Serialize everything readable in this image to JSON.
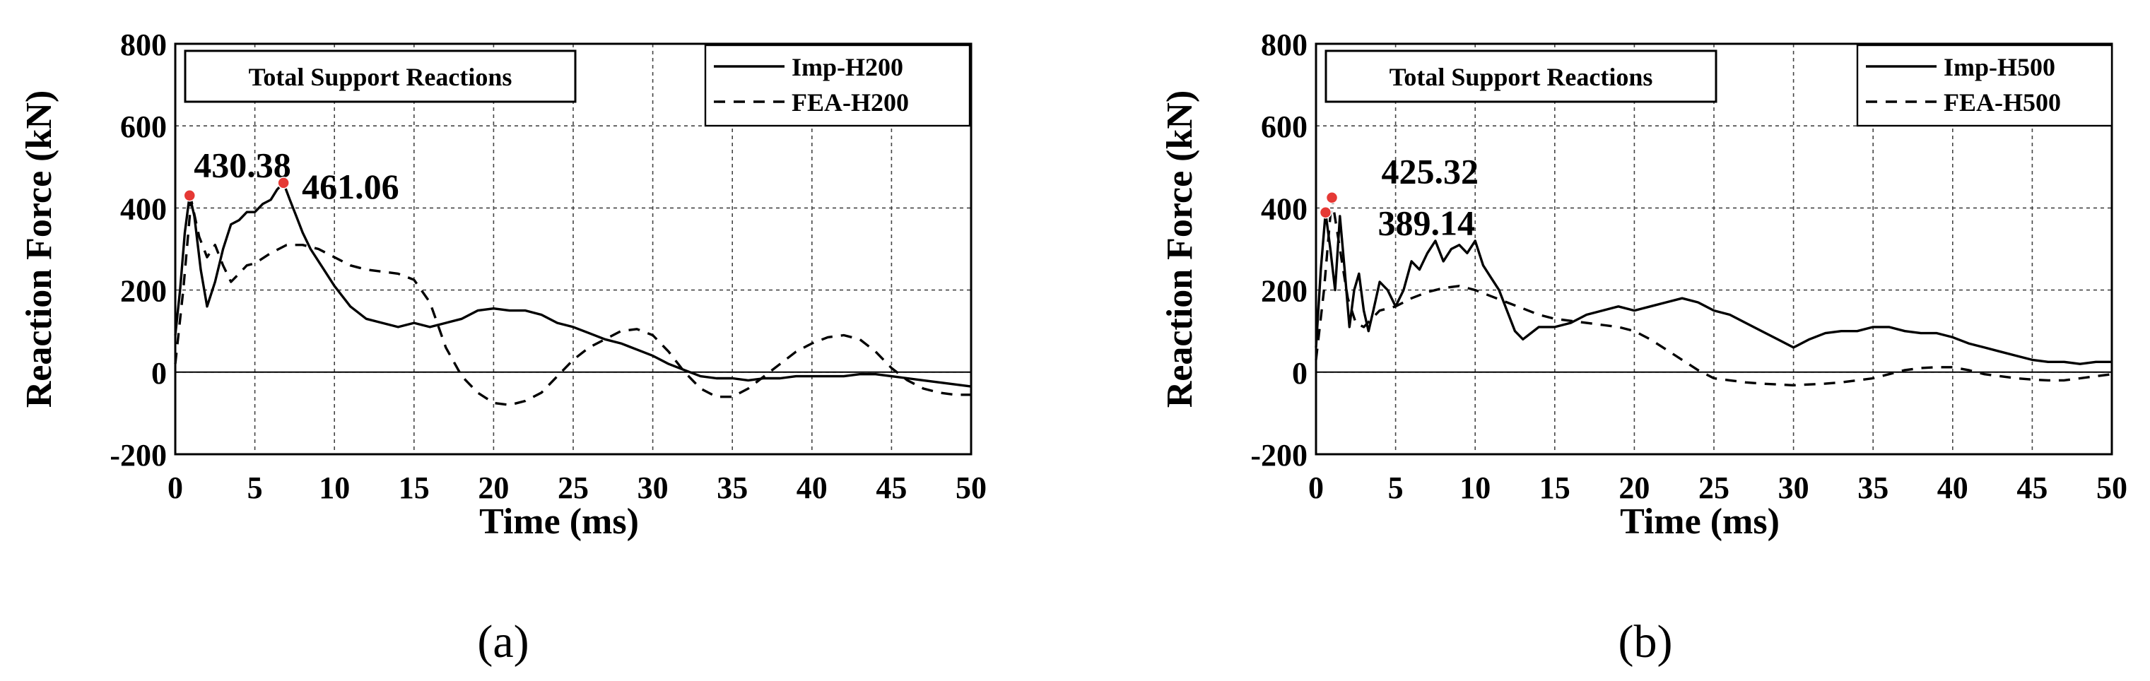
{
  "chart_data": [
    {
      "type": "line",
      "panel_label": "(a)",
      "title": "Total Support Reactions",
      "xlabel": "Time (ms)",
      "ylabel": "Reaction Force (kN)",
      "xlim": [
        0,
        50
      ],
      "ylim": [
        -200,
        800
      ],
      "xticks": [
        0,
        5,
        10,
        15,
        20,
        25,
        30,
        35,
        40,
        45,
        50
      ],
      "yticks": [
        -200,
        0,
        200,
        400,
        600,
        800
      ],
      "grid": true,
      "legend_position": "top-right",
      "series": [
        {
          "name": "Imp-H200",
          "style": "solid",
          "x": [
            0,
            0.3,
            0.6,
            0.9,
            1.2,
            1.6,
            2.0,
            2.5,
            3.0,
            3.5,
            4.0,
            4.5,
            5.0,
            5.5,
            6.0,
            6.4,
            6.8,
            7.2,
            7.6,
            8.0,
            8.5,
            9.0,
            10.0,
            11.0,
            12.0,
            13.0,
            14.0,
            15.0,
            16.0,
            17.0,
            18.0,
            19.0,
            20.0,
            21.0,
            22.0,
            23.0,
            24.0,
            25.0,
            26.0,
            27.0,
            28.0,
            29.0,
            30.0,
            31.0,
            32.0,
            33.0,
            34.0,
            35.0,
            36.0,
            37.0,
            38.0,
            39.0,
            40.0,
            41.0,
            42.0,
            43.0,
            44.0,
            45.0,
            46.0,
            47.0,
            48.0,
            49.0,
            50.0
          ],
          "values": [
            90,
            200,
            340,
            430.38,
            380,
            250,
            160,
            220,
            300,
            360,
            370,
            390,
            390,
            410,
            420,
            445,
            461.06,
            420,
            380,
            340,
            300,
            270,
            210,
            160,
            130,
            120,
            110,
            120,
            110,
            120,
            130,
            150,
            155,
            150,
            150,
            140,
            120,
            110,
            95,
            80,
            70,
            55,
            40,
            20,
            5,
            -10,
            -15,
            -15,
            -20,
            -15,
            -15,
            -10,
            -10,
            -10,
            -10,
            -5,
            -5,
            -10,
            -15,
            -20,
            -25,
            -30,
            -35
          ]
        },
        {
          "name": "FEA-H200",
          "style": "dashed",
          "x": [
            0,
            0.5,
            1.0,
            1.5,
            2.0,
            2.5,
            3.0,
            3.5,
            4.0,
            4.5,
            5.0,
            6.0,
            7.0,
            8.0,
            9.0,
            10.0,
            11.0,
            12.0,
            13.0,
            14.0,
            15.0,
            16.0,
            17.0,
            18.0,
            19.0,
            20.0,
            21.0,
            22.0,
            23.0,
            24.0,
            25.0,
            26.0,
            27.0,
            28.0,
            29.0,
            30.0,
            31.0,
            32.0,
            33.0,
            34.0,
            35.0,
            36.0,
            37.0,
            38.0,
            39.0,
            40.0,
            41.0,
            42.0,
            43.0,
            44.0,
            45.0,
            46.0,
            47.0,
            48.0,
            49.0,
            50.0
          ],
          "values": [
            20,
            200,
            420,
            330,
            280,
            310,
            260,
            220,
            240,
            260,
            265,
            290,
            310,
            310,
            300,
            280,
            260,
            250,
            245,
            240,
            225,
            170,
            60,
            -10,
            -50,
            -75,
            -80,
            -70,
            -50,
            -10,
            30,
            60,
            80,
            100,
            105,
            90,
            50,
            0,
            -40,
            -60,
            -60,
            -40,
            -10,
            20,
            50,
            70,
            85,
            90,
            80,
            50,
            10,
            -20,
            -40,
            -50,
            -55,
            -55
          ]
        }
      ],
      "annotations": [
        {
          "text": "430.38",
          "x": 0.9,
          "y": 430.38,
          "marker_color": "#e53935"
        },
        {
          "text": "461.06",
          "x": 6.8,
          "y": 461.06,
          "marker_color": "#e53935"
        }
      ]
    },
    {
      "type": "line",
      "panel_label": "(b)",
      "title": "Total Support Reactions",
      "xlabel": "Time (ms)",
      "ylabel": "Reaction Force (kN)",
      "xlim": [
        0,
        50
      ],
      "ylim": [
        -200,
        800
      ],
      "xticks": [
        0,
        5,
        10,
        15,
        20,
        25,
        30,
        35,
        40,
        45,
        50
      ],
      "yticks": [
        -200,
        0,
        200,
        400,
        600,
        800
      ],
      "grid": true,
      "legend_position": "top-right",
      "series": [
        {
          "name": "Imp-H500",
          "style": "solid",
          "x": [
            0,
            0.3,
            0.6,
            0.9,
            1.2,
            1.5,
            1.8,
            2.1,
            2.4,
            2.7,
            3.0,
            3.3,
            3.6,
            4.0,
            4.5,
            5.0,
            5.5,
            6.0,
            6.5,
            7.0,
            7.5,
            8.0,
            8.5,
            9.0,
            9.5,
            10.0,
            10.5,
            11.0,
            11.5,
            12.0,
            12.5,
            13.0,
            14.0,
            15.0,
            16.0,
            17.0,
            18.0,
            19.0,
            20.0,
            21.0,
            22.0,
            23.0,
            24.0,
            25.0,
            26.0,
            27.0,
            28.0,
            29.0,
            30.0,
            31.0,
            32.0,
            33.0,
            34.0,
            35.0,
            36.0,
            37.0,
            38.0,
            39.0,
            40.0,
            41.0,
            42.0,
            43.0,
            44.0,
            45.0,
            46.0,
            47.0,
            48.0,
            49.0,
            50.0
          ],
          "values": [
            60,
            250,
            389.14,
            300,
            200,
            380,
            250,
            110,
            200,
            240,
            150,
            100,
            150,
            220,
            200,
            160,
            200,
            270,
            250,
            290,
            320,
            270,
            300,
            310,
            290,
            320,
            260,
            230,
            200,
            150,
            100,
            80,
            110,
            110,
            120,
            140,
            150,
            160,
            150,
            160,
            170,
            180,
            170,
            150,
            140,
            120,
            100,
            80,
            60,
            80,
            95,
            100,
            100,
            110,
            110,
            100,
            95,
            95,
            85,
            70,
            60,
            50,
            40,
            30,
            25,
            25,
            20,
            25,
            25
          ]
        },
        {
          "name": "FEA-H500",
          "style": "dashed",
          "x": [
            0,
            0.5,
            1.0,
            1.5,
            2.0,
            2.5,
            3.0,
            3.5,
            4.0,
            5.0,
            6.0,
            7.0,
            8.0,
            9.0,
            10.0,
            11.0,
            12.0,
            13.0,
            14.0,
            15.0,
            16.0,
            17.0,
            18.0,
            19.0,
            20.0,
            21.0,
            22.0,
            23.0,
            24.0,
            25.0,
            26.0,
            27.0,
            28.0,
            29.0,
            30.0,
            31.0,
            32.0,
            33.0,
            34.0,
            35.0,
            36.0,
            37.0,
            38.0,
            39.0,
            40.0,
            41.0,
            42.0,
            43.0,
            44.0,
            45.0,
            46.0,
            47.0,
            48.0,
            49.0,
            50.0
          ],
          "values": [
            30,
            200,
            425.32,
            300,
            180,
            120,
            110,
            130,
            150,
            160,
            180,
            195,
            205,
            210,
            200,
            185,
            170,
            155,
            140,
            130,
            125,
            120,
            115,
            110,
            100,
            80,
            55,
            30,
            5,
            -15,
            -20,
            -25,
            -28,
            -30,
            -32,
            -30,
            -28,
            -25,
            -20,
            -15,
            -5,
            5,
            10,
            12,
            12,
            5,
            -5,
            -10,
            -15,
            -18,
            -20,
            -20,
            -15,
            -10,
            -5
          ]
        }
      ],
      "annotations": [
        {
          "text": "425.32",
          "x": 1.0,
          "y": 425.32,
          "marker_color": "#e53935"
        },
        {
          "text": "389.14",
          "x": 0.6,
          "y": 389.14,
          "marker_color": "#e53935"
        }
      ]
    }
  ]
}
